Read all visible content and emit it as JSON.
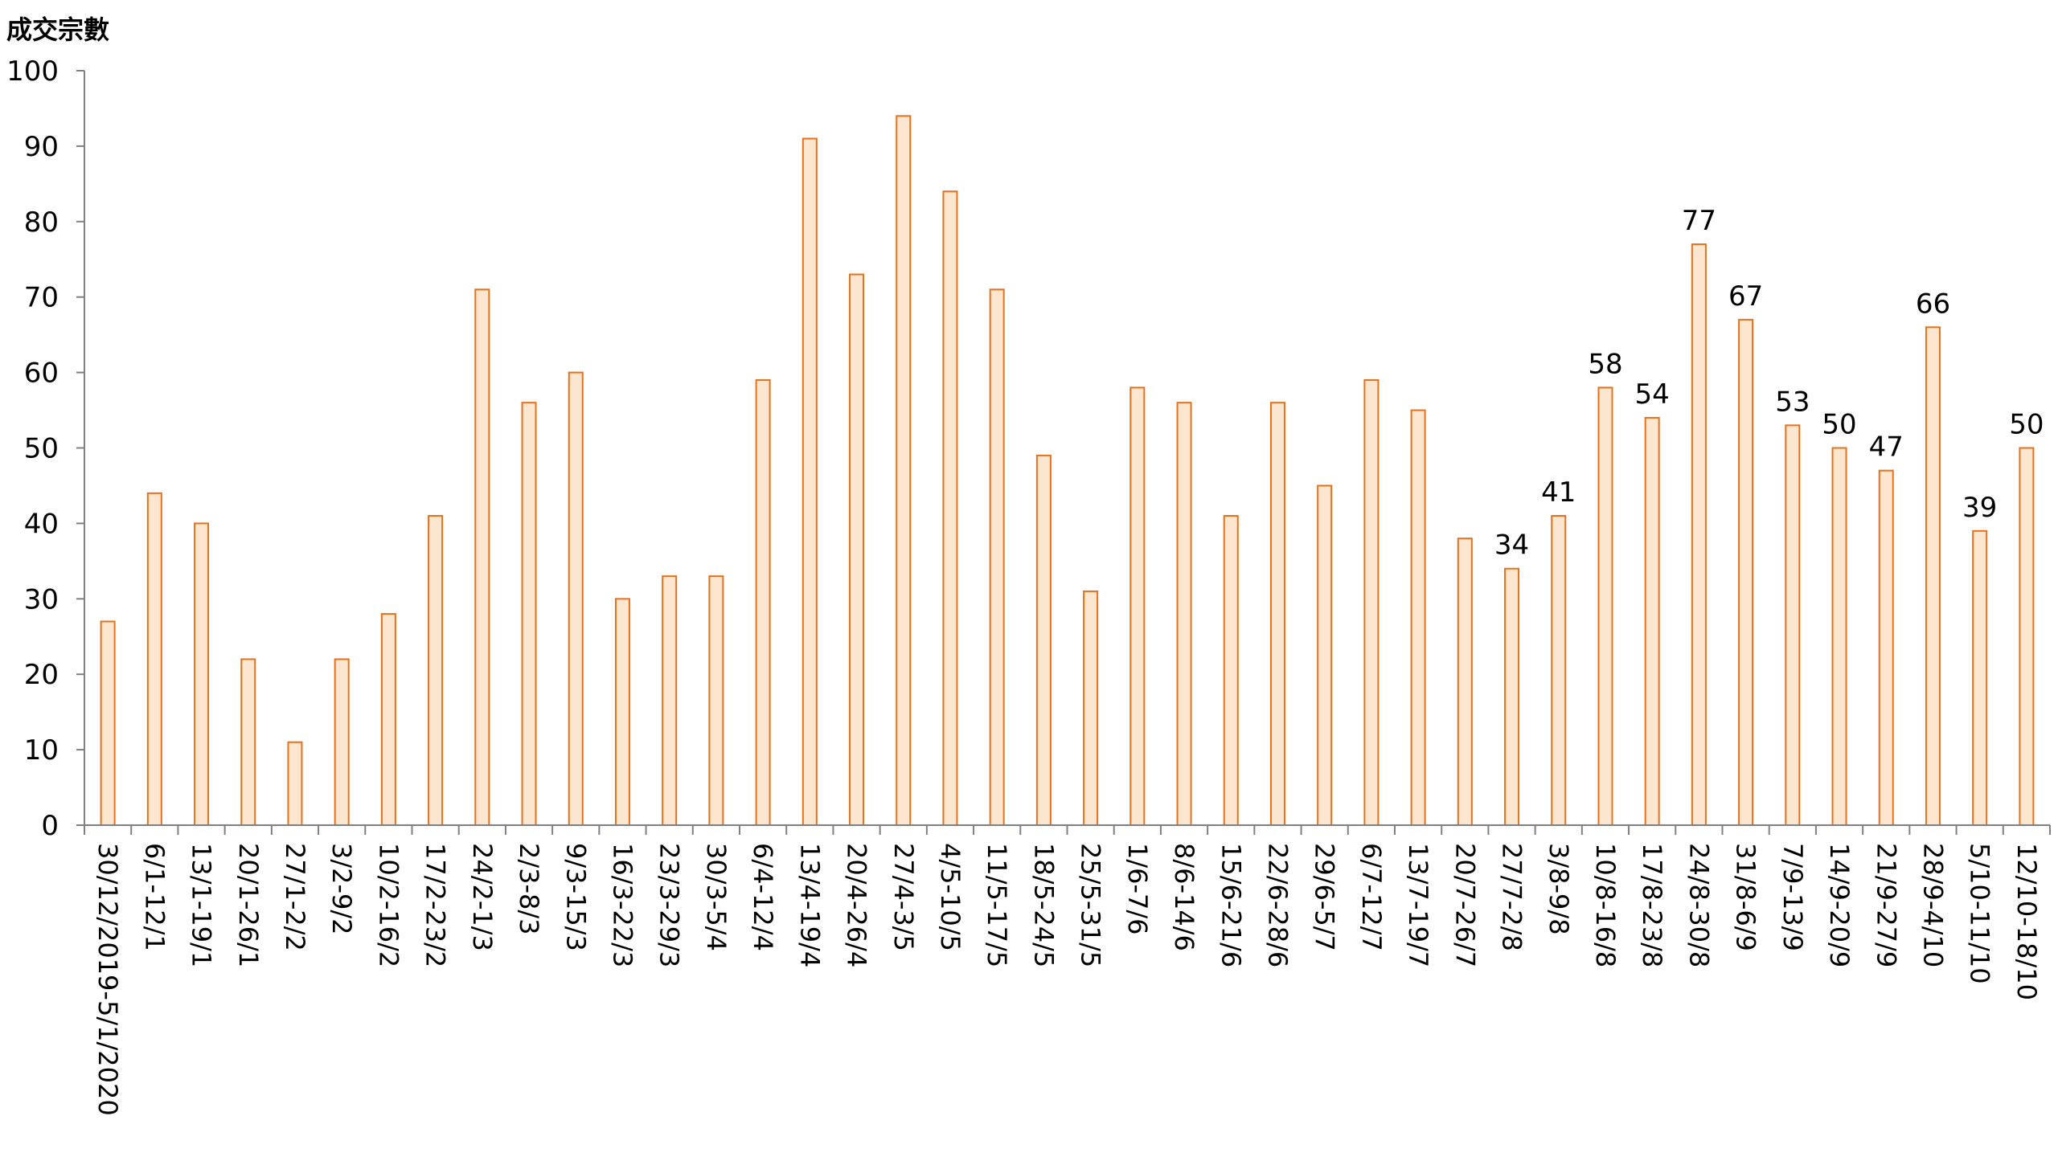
{
  "chart_data": {
    "type": "bar",
    "title": "",
    "xlabel": "",
    "ylabel": "成交宗數",
    "ylim": [
      0,
      100
    ],
    "yticks": [
      0,
      10,
      20,
      30,
      40,
      50,
      60,
      70,
      80,
      90,
      100
    ],
    "grid": false,
    "legend": "none",
    "bar_fill_color": "#fde6cf",
    "bar_edge_color": "#e7711b",
    "axis_color": "#808080",
    "categories": [
      "30/12/2019-5/1/2020",
      "6/1-12/1",
      "13/1-19/1",
      "20/1-26/1",
      "27/1-2/2",
      "3/2-9/2",
      "10/2-16/2",
      "17/2-23/2",
      "24/2-1/3",
      "2/3-8/3",
      "9/3-15/3",
      "16/3-22/3",
      "23/3-29/3",
      "30/3-5/4",
      "6/4-12/4",
      "13/4-19/4",
      "20/4-26/4",
      "27/4-3/5",
      "4/5-10/5",
      "11/5-17/5",
      "18/5-24/5",
      "25/5-31/5",
      "1/6-7/6",
      "8/6-14/6",
      "15/6-21/6",
      "22/6-28/6",
      "29/6-5/7",
      "6/7-12/7",
      "13/7-19/7",
      "20/7-26/7",
      "27/7-2/8",
      "3/8-9/8",
      "10/8-16/8",
      "17/8-23/8",
      "24/8-30/8",
      "31/8-6/9",
      "7/9-13/9",
      "14/9-20/9",
      "21/9-27/9",
      "28/9-4/10",
      "5/10-11/10",
      "12/10-18/10"
    ],
    "values": [
      27,
      44,
      40,
      22,
      11,
      22,
      28,
      41,
      71,
      56,
      60,
      30,
      33,
      33,
      59,
      91,
      73,
      94,
      84,
      71,
      49,
      31,
      58,
      56,
      41,
      56,
      45,
      59,
      55,
      38,
      34,
      41,
      58,
      54,
      77,
      67,
      53,
      50,
      47,
      66,
      39,
      50
    ],
    "data_labels": [
      "",
      "",
      "",
      "",
      "",
      "",
      "",
      "",
      "",
      "",
      "",
      "",
      "",
      "",
      "",
      "",
      "",
      "",
      "",
      "",
      "",
      "",
      "",
      "",
      "",
      "",
      "",
      "",
      "",
      "",
      "34",
      "41",
      "58",
      "54",
      "77",
      "67",
      "53",
      "50",
      "47",
      "66",
      "39",
      "50"
    ]
  }
}
